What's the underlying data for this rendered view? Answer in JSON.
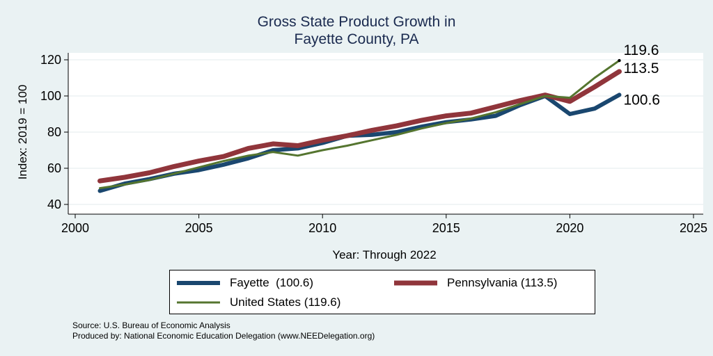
{
  "chart_data": {
    "type": "line",
    "title": [
      "Gross State Product Growth in",
      "Fayette County, PA"
    ],
    "xlabel": "Year: Through 2022",
    "ylabel": "Index: 2019 = 100",
    "xlim": [
      2000,
      2025
    ],
    "ylim": [
      40,
      120
    ],
    "xticks": [
      "2000",
      "2005",
      "2010",
      "2015",
      "2020",
      "2025"
    ],
    "yticks": [
      "40",
      "60",
      "80",
      "100",
      "120"
    ],
    "x": [
      2001,
      2002,
      2003,
      2004,
      2005,
      2006,
      2007,
      2008,
      2009,
      2010,
      2011,
      2012,
      2013,
      2014,
      2015,
      2016,
      2017,
      2018,
      2019,
      2020,
      2021,
      2022
    ],
    "series": [
      {
        "name": "Fayette  (100.6)",
        "color": "#1a476f",
        "width": 6,
        "values": [
          47.5,
          51.5,
          54,
          57,
          59,
          62,
          65.5,
          70,
          71,
          74,
          78,
          78.5,
          80,
          83,
          85.5,
          87,
          89,
          95,
          100,
          90,
          93,
          100.6
        ],
        "end_label": "100.6"
      },
      {
        "name": "Pennsylvania (113.5)",
        "color": "#90353b",
        "width": 7,
        "values": [
          53,
          55,
          57.5,
          61,
          64,
          66.5,
          71,
          73.5,
          72.5,
          75.5,
          78,
          81,
          83.5,
          86.5,
          89,
          90.5,
          94,
          97.5,
          100.5,
          97,
          105,
          113.5
        ],
        "end_label": "113.5"
      },
      {
        "name": "United States (119.6)",
        "color": "#55752f",
        "width": 3,
        "values": [
          49,
          51,
          53.5,
          57,
          60.5,
          64,
          67,
          69,
          67,
          70,
          72.5,
          75.5,
          78.5,
          82,
          85,
          87.5,
          91,
          95.5,
          100,
          99,
          110,
          119.6
        ],
        "end_label": "119.6"
      }
    ],
    "legend_placement": "bottom"
  },
  "source_lines": [
    "Source: U.S. Bureau of Economic Analysis",
    "Produced by: National Economic Education Delegation (www.NEEDelegation.org)"
  ]
}
